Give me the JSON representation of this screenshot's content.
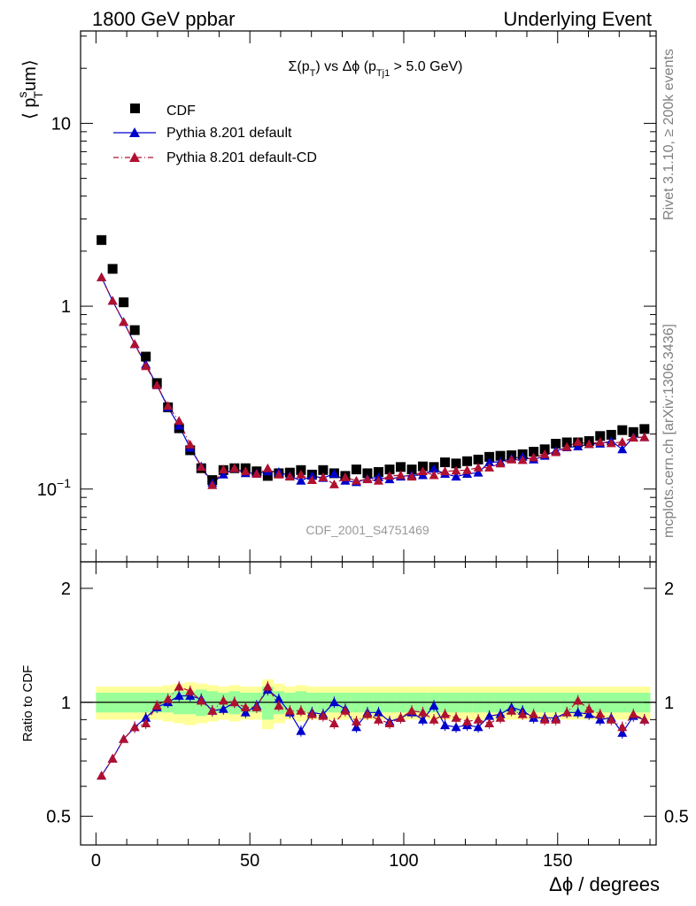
{
  "header": {
    "left": "1800 GeV ppbar",
    "right": "Underlying Event"
  },
  "side_labels": {
    "rivet": "Rivet 3.1.10, ≥ 200k events",
    "mcplots": "mcplots.cern.ch [arXiv:1306.3436]"
  },
  "watermark": "CDF_2001_S4751469",
  "colors": {
    "data": "#000000",
    "pythia_default": "#0000cc",
    "pythia_cd": "#b01030",
    "band_inner": "#99ff99",
    "band_outer": "#ffff99"
  },
  "chart_data": [
    {
      "type": "scatter",
      "title": "Σ(p_T) vs Δφ (p_Tj1 > 5.0 GeV)",
      "title_parts": {
        "main": "Σ(p",
        "sub1": "T",
        "mid": ") vs Δϕ (p",
        "sub2": "Tj1",
        "end": " > 5.0 GeV)"
      },
      "ylabel": "⟨ p_T^s um⟩",
      "ylabel_parts": {
        "open": "⟨ p",
        "sup": "s",
        "sub": "T",
        "tail": "um⟩"
      },
      "yscale": "log",
      "xlim": [
        -5,
        182
      ],
      "ylim": [
        0.04,
        32
      ],
      "yticks": [
        {
          "value": 0.1,
          "base": "10",
          "exp": "−1"
        },
        {
          "value": 1,
          "label": "1"
        },
        {
          "value": 10,
          "label": "10"
        }
      ],
      "legend_position": "top-left",
      "x": [
        1.8,
        5.4,
        9.0,
        12.6,
        16.2,
        19.8,
        23.4,
        27.0,
        30.6,
        34.2,
        37.8,
        41.4,
        45.0,
        48.6,
        52.2,
        55.8,
        59.4,
        63.0,
        66.6,
        70.2,
        73.8,
        77.4,
        81.0,
        84.6,
        88.2,
        91.8,
        95.4,
        99.0,
        102.6,
        106.2,
        109.8,
        113.4,
        117.0,
        120.6,
        124.2,
        127.8,
        131.4,
        135.0,
        138.6,
        142.2,
        145.8,
        149.4,
        153.0,
        156.6,
        160.2,
        163.8,
        167.4,
        171.0,
        174.6,
        178.2
      ],
      "series": [
        {
          "name": "CDF",
          "marker": "square",
          "values": [
            2.3,
            1.6,
            1.05,
            0.74,
            0.53,
            0.38,
            0.28,
            0.215,
            0.163,
            0.13,
            0.112,
            0.127,
            0.13,
            0.13,
            0.125,
            0.118,
            0.122,
            0.123,
            0.127,
            0.12,
            0.127,
            0.122,
            0.118,
            0.128,
            0.122,
            0.124,
            0.128,
            0.132,
            0.128,
            0.133,
            0.132,
            0.14,
            0.138,
            0.142,
            0.145,
            0.15,
            0.152,
            0.153,
            0.155,
            0.16,
            0.165,
            0.177,
            0.18,
            0.18,
            0.183,
            0.195,
            0.198,
            0.21,
            0.205,
            0.213
          ]
        },
        {
          "name": "Pythia 8.201 default",
          "marker": "triangle",
          "line": "solid",
          "values": [
            1.44,
            1.07,
            0.82,
            0.62,
            0.48,
            0.37,
            0.28,
            0.222,
            0.168,
            0.133,
            0.108,
            0.12,
            0.13,
            0.122,
            0.122,
            0.125,
            0.124,
            0.118,
            0.111,
            0.118,
            0.115,
            0.121,
            0.111,
            0.109,
            0.114,
            0.116,
            0.113,
            0.117,
            0.119,
            0.119,
            0.129,
            0.121,
            0.117,
            0.121,
            0.123,
            0.14,
            0.141,
            0.147,
            0.15,
            0.145,
            0.152,
            0.162,
            0.169,
            0.171,
            0.176,
            0.177,
            0.183,
            0.165,
            0.192,
            0.192
          ]
        },
        {
          "name": "Pythia 8.201 default-CD",
          "marker": "triangle",
          "line": "dashdot",
          "values": [
            1.44,
            1.07,
            0.82,
            0.62,
            0.47,
            0.37,
            0.285,
            0.236,
            0.175,
            0.132,
            0.105,
            0.128,
            0.13,
            0.125,
            0.121,
            0.13,
            0.12,
            0.117,
            0.12,
            0.112,
            0.116,
            0.106,
            0.116,
            0.111,
            0.113,
            0.111,
            0.118,
            0.119,
            0.117,
            0.125,
            0.119,
            0.125,
            0.126,
            0.127,
            0.131,
            0.131,
            0.138,
            0.145,
            0.144,
            0.149,
            0.155,
            0.159,
            0.17,
            0.181,
            0.176,
            0.181,
            0.178,
            0.181,
            0.191,
            0.192
          ]
        }
      ]
    },
    {
      "type": "scatter",
      "ylabel": "Ratio to CDF",
      "xlabel": "Δϕ / degrees",
      "xlim": [
        -5,
        182
      ],
      "ylim": [
        0.42,
        2.35
      ],
      "yscale": "log",
      "xticks": [
        0,
        50,
        100,
        150
      ],
      "yticks": [
        0.5,
        1,
        2
      ],
      "reference_line": 1,
      "band_inner_halfwidth": [
        0.06,
        0.06,
        0.06,
        0.06,
        0.06,
        0.06,
        0.06,
        0.07,
        0.07,
        0.08,
        0.07,
        0.06,
        0.07,
        0.06,
        0.06,
        0.1,
        0.07,
        0.06,
        0.07,
        0.06,
        0.06,
        0.06,
        0.06,
        0.06,
        0.06,
        0.06,
        0.06,
        0.06,
        0.06,
        0.06,
        0.06,
        0.06,
        0.06,
        0.06,
        0.06,
        0.06,
        0.06,
        0.06,
        0.06,
        0.06,
        0.06,
        0.06,
        0.06,
        0.06,
        0.06,
        0.06,
        0.06,
        0.06,
        0.06,
        0.06
      ],
      "band_outer_halfwidth": [
        0.1,
        0.1,
        0.1,
        0.1,
        0.1,
        0.1,
        0.11,
        0.12,
        0.13,
        0.12,
        0.11,
        0.1,
        0.11,
        0.1,
        0.1,
        0.15,
        0.12,
        0.1,
        0.11,
        0.1,
        0.1,
        0.1,
        0.1,
        0.1,
        0.1,
        0.1,
        0.1,
        0.1,
        0.1,
        0.1,
        0.1,
        0.1,
        0.1,
        0.1,
        0.1,
        0.1,
        0.1,
        0.1,
        0.1,
        0.1,
        0.1,
        0.1,
        0.1,
        0.1,
        0.1,
        0.1,
        0.1,
        0.1,
        0.1,
        0.1
      ],
      "series": [
        {
          "name": "Pythia 8.201 default",
          "values": [
            0.64,
            0.71,
            0.8,
            0.86,
            0.91,
            0.97,
            1.0,
            1.04,
            1.04,
            1.02,
            0.95,
            0.96,
            1.0,
            0.94,
            0.98,
            1.08,
            1.02,
            0.94,
            0.84,
            0.94,
            0.93,
            1.0,
            0.96,
            0.86,
            0.94,
            0.94,
            0.89,
            0.91,
            0.94,
            0.9,
            0.98,
            0.87,
            0.86,
            0.87,
            0.86,
            0.92,
            0.93,
            0.97,
            0.95,
            0.91,
            0.91,
            0.91,
            0.94,
            0.94,
            0.93,
            0.9,
            0.91,
            0.83,
            0.92,
            0.9
          ]
        },
        {
          "name": "Pythia 8.201 default-CD",
          "values": [
            0.64,
            0.71,
            0.8,
            0.86,
            0.88,
            0.98,
            1.02,
            1.1,
            1.07,
            1.01,
            0.95,
            1.01,
            1.0,
            0.97,
            0.97,
            1.1,
            0.98,
            0.95,
            0.95,
            0.93,
            0.92,
            0.88,
            0.95,
            0.89,
            0.93,
            0.9,
            0.88,
            0.91,
            0.95,
            0.94,
            0.9,
            0.93,
            0.91,
            0.89,
            0.9,
            0.88,
            0.91,
            0.95,
            0.93,
            0.93,
            0.9,
            0.9,
            0.94,
            1.01,
            0.96,
            0.93,
            0.9,
            0.86,
            0.93,
            0.9
          ]
        }
      ]
    }
  ]
}
